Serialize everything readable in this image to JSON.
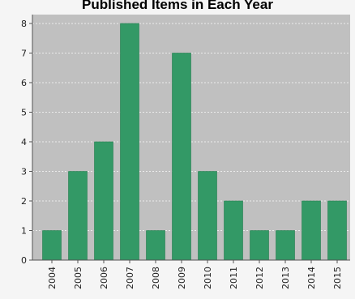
{
  "chart_data": {
    "type": "bar",
    "title": "Published Items in Each Year",
    "xlabel": "",
    "ylabel": "",
    "categories": [
      "2004",
      "2005",
      "2006",
      "2007",
      "2008",
      "2009",
      "2010",
      "2011",
      "2012",
      "2013",
      "2014",
      "2015"
    ],
    "values": [
      1,
      3,
      4,
      8,
      1,
      7,
      3,
      2,
      1,
      1,
      2,
      2
    ],
    "ylim": [
      0,
      8.3
    ],
    "yticks": [
      0,
      1,
      2,
      3,
      4,
      5,
      6,
      7,
      8
    ],
    "grid": true,
    "legend": "none",
    "colors": {
      "bar": "#339966",
      "bar_edge": "#2a7f52",
      "plot_bg": "#c0c0c0",
      "grid": "#ebebeb",
      "axis": "#555555"
    }
  }
}
